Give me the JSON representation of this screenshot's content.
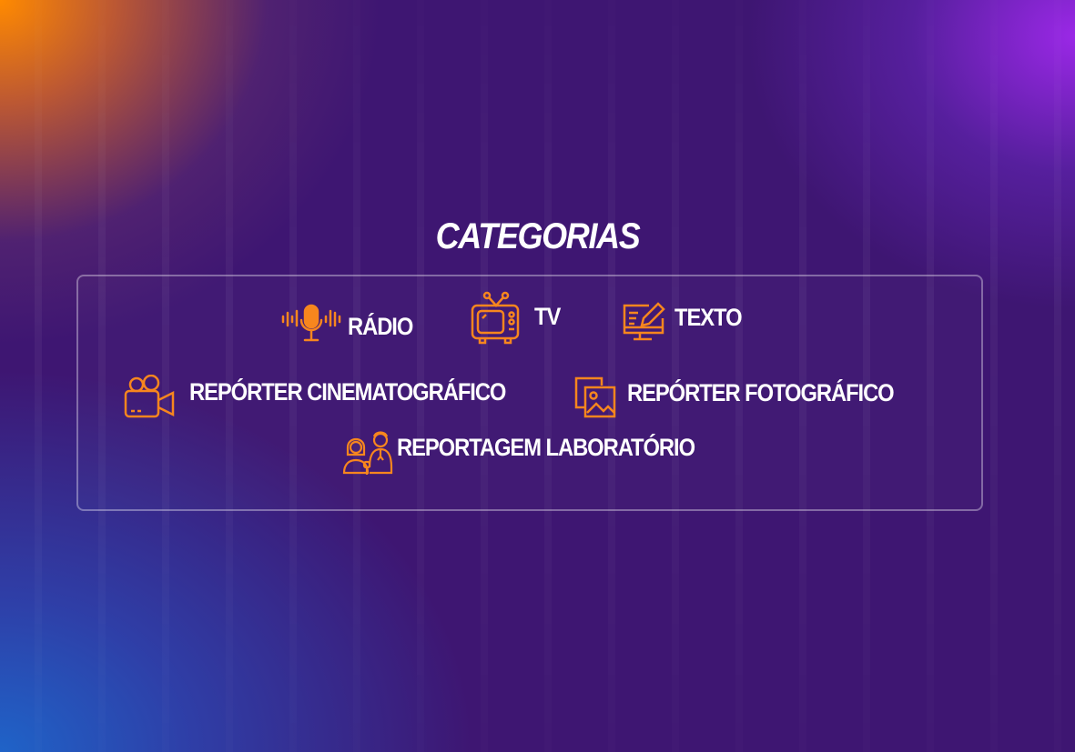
{
  "title": "CATEGORIAS",
  "accent_color": "#f7861e",
  "categories": [
    {
      "label": "RÁDIO",
      "icon": "microphone-icon"
    },
    {
      "label": "TV",
      "icon": "tv-icon"
    },
    {
      "label": "TEXTO",
      "icon": "monitor-pencil-icon"
    },
    {
      "label": "REPÓRTER CINEMATOGRÁFICO",
      "icon": "video-camera-icon"
    },
    {
      "label": "REPÓRTER FOTOGRÁFICO",
      "icon": "photo-icon"
    },
    {
      "label": "REPORTAGEM LABORATÓRIO",
      "icon": "reporters-icon"
    }
  ]
}
